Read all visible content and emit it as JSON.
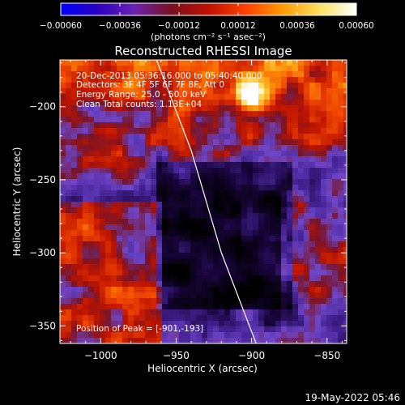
{
  "chart_data": {
    "type": "heatmap",
    "title": "Reconstructed RHESSI Image",
    "xlabel": "Heliocentric X (arcsec)",
    "ylabel": "Heliocentric Y (arcsec)",
    "xlim": [
      -1027,
      -837
    ],
    "ylim": [
      -362,
      -168
    ],
    "x_ticks": [
      -1000,
      -950,
      -900,
      -850
    ],
    "y_ticks": [
      -350,
      -300,
      -250,
      -200
    ],
    "x_tick_labels": [
      "−1000",
      "−950",
      "−900",
      "−850"
    ],
    "y_tick_labels": [
      "−350",
      "−300",
      "−250",
      "−200"
    ],
    "colorbar": {
      "range": [
        -0.0006,
        0.0006
      ],
      "tick_values": [
        -0.0006,
        -0.00036,
        -0.00012,
        0.00012,
        0.00036,
        0.0006
      ],
      "tick_labels": [
        "−0.00060",
        "−0.00036",
        "−0.00012",
        "0.00012",
        "0.00036",
        "0.00060"
      ],
      "units_label": "(photons cm⁻² s⁻¹ asec⁻²)",
      "colors": [
        "#0000ff",
        "#2a00c0",
        "#6a22b0",
        "#7a1020",
        "#c01000",
        "#ff4000",
        "#ff9a00",
        "#ffe060",
        "#ffffff"
      ]
    },
    "annotations": [
      "20-Dec-2013 05:36:16.000 to 05:40:40.000",
      "Detectors: 3F 4F 5F 6F 7F 8F, Att 0",
      "Energy Range: 25.0 - 50.0 keV",
      "Clean     Total counts: 1.13E+04"
    ],
    "peak_label": "Position of Peak = [-901,-193]",
    "peak": [
      -901,
      -193
    ],
    "limb_curve": [
      [
        -963,
        -168
      ],
      [
        -940,
        -230
      ],
      [
        -920,
        -300
      ],
      [
        -897,
        -362
      ]
    ],
    "field_regions": {
      "low_color": "#4b2a9a",
      "high_color": "#d02000"
    }
  },
  "footer": {
    "date_stamp": "19-May-2022 05:46"
  }
}
